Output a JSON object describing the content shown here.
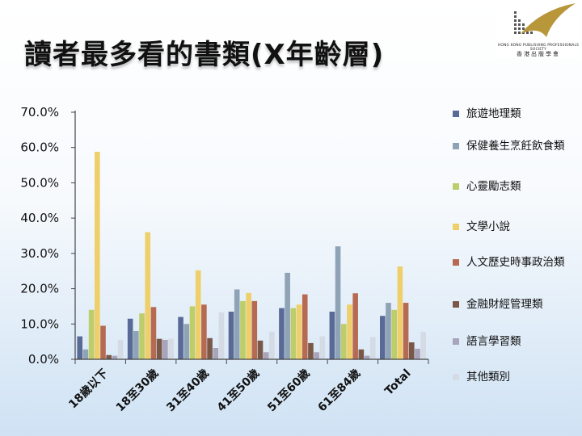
{
  "slide": {
    "title": "讀者最多看的書類(X年齡層)"
  },
  "logo": {
    "en": "HONG KONG PUBLISHING PROFESSIONALS SOCIETY",
    "zh": "香港出版學會"
  },
  "chart_data": {
    "type": "bar",
    "categories": [
      "18歲以下",
      "18至30歲",
      "31至40歲",
      "41至50歲",
      "51至60歲",
      "61至84歲",
      "Total"
    ],
    "ylim": [
      0,
      70
    ],
    "yticks": [
      0,
      10,
      20,
      30,
      40,
      50,
      60,
      70
    ],
    "ytick_labels": [
      "0.0%",
      "10.0%",
      "20.0%",
      "30.0%",
      "40.0%",
      "50.0%",
      "60.0%",
      "70.0%"
    ],
    "grid": false,
    "legend_position": "right",
    "series": [
      {
        "name": "旅遊地理類",
        "color": "#5a6a96",
        "values": [
          6.5,
          11.5,
          12.0,
          13.5,
          14.5,
          13.5,
          12.3
        ]
      },
      {
        "name": "保健養生烹飪飲食類",
        "color": "#8ea3b6",
        "values": [
          2.8,
          8.0,
          10.0,
          19.8,
          24.5,
          32.0,
          16.0
        ]
      },
      {
        "name": "心靈勵志類",
        "color": "#bccd6a",
        "values": [
          14.0,
          13.0,
          15.0,
          16.5,
          14.5,
          10.0,
          14.0
        ]
      },
      {
        "name": "文學小說",
        "color": "#efcf6a",
        "values": [
          58.8,
          36.0,
          25.2,
          18.8,
          15.5,
          15.5,
          26.3
        ]
      },
      {
        "name": "人文歷史時事政治類",
        "color": "#b76a52",
        "values": [
          9.5,
          14.8,
          15.5,
          16.5,
          18.4,
          18.7,
          16.0
        ]
      },
      {
        "name": "金融財經管理類",
        "color": "#7a5848",
        "values": [
          1.2,
          5.8,
          6.0,
          5.3,
          4.6,
          2.8,
          4.8
        ]
      },
      {
        "name": "語言學習類",
        "color": "#a8a4bc",
        "values": [
          1.0,
          5.5,
          3.2,
          2.0,
          2.0,
          1.0,
          3.0
        ]
      },
      {
        "name": "其他類別",
        "color": "#d4dbe4",
        "values": [
          5.5,
          5.8,
          13.3,
          7.8,
          6.5,
          6.3,
          7.8
        ]
      }
    ]
  }
}
